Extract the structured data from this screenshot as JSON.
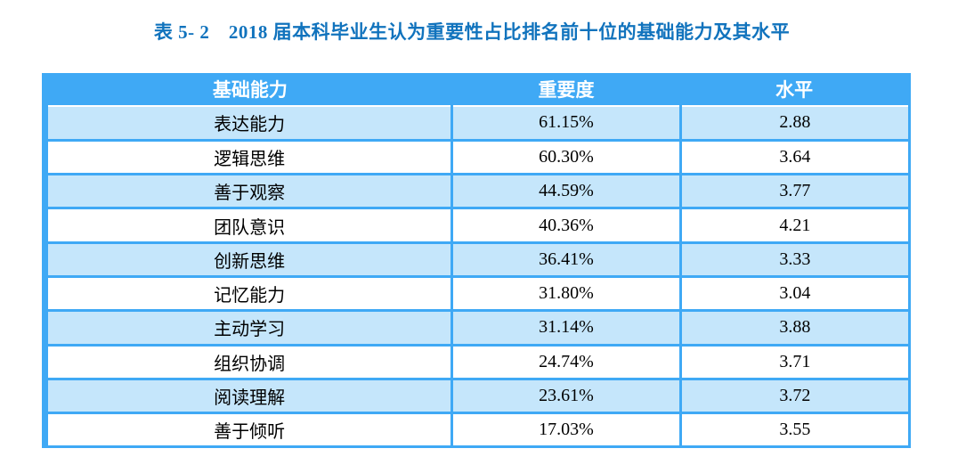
{
  "title": "表 5- 2　2018 届本科毕业生认为重要性占比排名前十位的基础能力及其水平",
  "colors": {
    "header_bg": "#3FA9F5",
    "stripe_bg": "#C5E6FB",
    "border": "#3FA9F5",
    "title_text": "#1173BD",
    "header_text": "#FFFFFF",
    "cell_text": "#000000"
  },
  "table": {
    "headers": [
      "基础能力",
      "重要度",
      "水平"
    ],
    "rows": [
      {
        "ability": "表达能力",
        "importance": "61.15%",
        "level": "2.88"
      },
      {
        "ability": "逻辑思维",
        "importance": "60.30%",
        "level": "3.64"
      },
      {
        "ability": "善于观察",
        "importance": "44.59%",
        "level": "3.77"
      },
      {
        "ability": "团队意识",
        "importance": "40.36%",
        "level": "4.21"
      },
      {
        "ability": "创新思维",
        "importance": "36.41%",
        "level": "3.33"
      },
      {
        "ability": "记忆能力",
        "importance": "31.80%",
        "level": "3.04"
      },
      {
        "ability": "主动学习",
        "importance": "31.14%",
        "level": "3.88"
      },
      {
        "ability": "组织协调",
        "importance": "24.74%",
        "level": "3.71"
      },
      {
        "ability": "阅读理解",
        "importance": "23.61%",
        "level": "3.72"
      },
      {
        "ability": "善于倾听",
        "importance": "17.03%",
        "level": "3.55"
      }
    ]
  },
  "chart_data": {
    "type": "table",
    "title": "表 5- 2　2018 届本科毕业生认为重要性占比排名前十位的基础能力及其水平",
    "columns": [
      "基础能力",
      "重要度",
      "水平"
    ],
    "categories": [
      "表达能力",
      "逻辑思维",
      "善于观察",
      "团队意识",
      "创新思维",
      "记忆能力",
      "主动学习",
      "组织协调",
      "阅读理解",
      "善于倾听"
    ],
    "series": [
      {
        "name": "重要度",
        "values": [
          61.15,
          60.3,
          44.59,
          40.36,
          36.41,
          31.8,
          31.14,
          24.74,
          23.61,
          17.03
        ],
        "unit": "%"
      },
      {
        "name": "水平",
        "values": [
          2.88,
          3.64,
          3.77,
          4.21,
          3.33,
          3.04,
          3.88,
          3.71,
          3.72,
          3.55
        ]
      }
    ]
  }
}
